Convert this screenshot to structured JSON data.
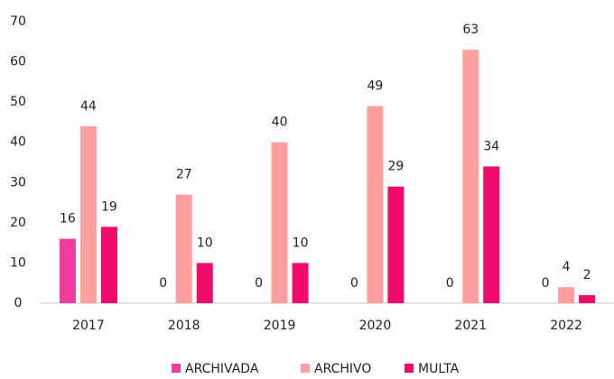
{
  "chart_data": {
    "type": "bar",
    "categories": [
      "2017",
      "2018",
      "2019",
      "2020",
      "2021",
      "2022"
    ],
    "series": [
      {
        "name": "ARCHIVADA",
        "color": "#f03c9e",
        "values": [
          16,
          0,
          0,
          0,
          0,
          0
        ]
      },
      {
        "name": "ARCHIVO",
        "color": "#ff9e9e",
        "values": [
          44,
          27,
          40,
          49,
          63,
          4
        ]
      },
      {
        "name": "MULTA",
        "color": "#f00a6c",
        "values": [
          19,
          10,
          10,
          29,
          34,
          2
        ]
      }
    ],
    "ylim": [
      0,
      70
    ],
    "yticks": [
      0,
      10,
      20,
      30,
      40,
      50,
      60,
      70
    ],
    "grid": false,
    "legend": "bottom"
  }
}
